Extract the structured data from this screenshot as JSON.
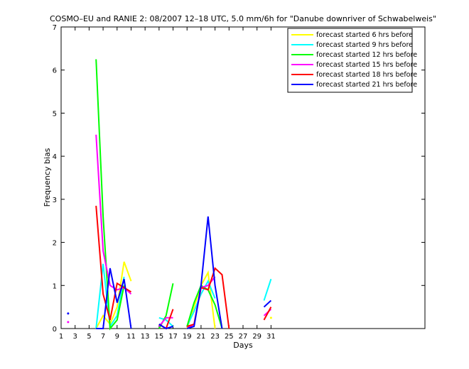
{
  "chart_data": {
    "type": "line",
    "title": "COSMO–EU and RANIE 2: 08/2007 12–18 UTC, 5.0 mm/6h for \"Danube downriver of Schwabelweis\"",
    "x_label": "Days",
    "y_label": "Frequency bias",
    "x": [
      1,
      2,
      3,
      4,
      5,
      6,
      7,
      8,
      9,
      10,
      11,
      12,
      13,
      14,
      15,
      16,
      17,
      18,
      19,
      20,
      21,
      22,
      23,
      24,
      25,
      26,
      27,
      28,
      29,
      30,
      31
    ],
    "xlim": [
      1,
      53
    ],
    "xticks": [
      1,
      3,
      5,
      7,
      9,
      11,
      13,
      15,
      17,
      19,
      21,
      23,
      25,
      27,
      29,
      31
    ],
    "ylim": [
      0,
      7
    ],
    "yticks": [
      0,
      1,
      2,
      3,
      4,
      5,
      6,
      7
    ],
    "legend": "upper-right",
    "series": [
      {
        "name": "forecast started 6 hrs before",
        "color": "#ffff00",
        "values": [
          null,
          null,
          null,
          null,
          null,
          0,
          0.3,
          0.1,
          0.5,
          1.55,
          1.1,
          null,
          null,
          null,
          null,
          null,
          null,
          null,
          0,
          0.5,
          1.0,
          1.3,
          0,
          null,
          null,
          null,
          null,
          null,
          null,
          null,
          0.25
        ]
      },
      {
        "name": "forecast started 9 hrs before",
        "color": "#00ffff",
        "values": [
          null,
          null,
          null,
          null,
          null,
          0,
          1.5,
          0.05,
          0.3,
          1.2,
          null,
          null,
          null,
          null,
          0.25,
          0.2,
          0.05,
          null,
          0.05,
          0.4,
          0.8,
          1.1,
          0.7,
          null,
          null,
          null,
          null,
          null,
          null,
          0.65,
          1.15
        ]
      },
      {
        "name": "forecast started 12 hrs before",
        "color": "#00ff00",
        "values": [
          null,
          null,
          null,
          null,
          null,
          6.25,
          2.6,
          0,
          0.2,
          1.0,
          null,
          null,
          null,
          null,
          0,
          0.3,
          1.05,
          null,
          0.05,
          0.6,
          1.0,
          0.9,
          0.55,
          0,
          null,
          null,
          null,
          null,
          null,
          null,
          null
        ]
      },
      {
        "name": "forecast started 15 hrs before",
        "color": "#ff00ff",
        "values": [
          null,
          0.15,
          null,
          null,
          null,
          4.5,
          1.8,
          1.0,
          0.9,
          0.95,
          0.8,
          null,
          null,
          null,
          0.05,
          0.25,
          0.25,
          null,
          0,
          0.1,
          0.95,
          1.0,
          1.2,
          null,
          null,
          null,
          null,
          null,
          null,
          0.3,
          0.45
        ]
      },
      {
        "name": "forecast started 18 hrs before",
        "color": "#ff0000",
        "values": [
          null,
          null,
          null,
          null,
          null,
          2.85,
          0.8,
          0.2,
          1.05,
          0.95,
          0.85,
          null,
          null,
          null,
          0.1,
          0,
          0.45,
          null,
          0.05,
          0.1,
          0.95,
          0.9,
          1.4,
          1.25,
          0,
          null,
          null,
          null,
          null,
          0.2,
          0.5
        ]
      },
      {
        "name": "forecast started 21 hrs before",
        "color": "#0000ff",
        "values": [
          null,
          0.35,
          null,
          null,
          null,
          0,
          0,
          1.4,
          0.6,
          1.15,
          0,
          null,
          null,
          null,
          0.1,
          0,
          0.05,
          null,
          0,
          0.05,
          1.0,
          2.6,
          1.0,
          0,
          null,
          null,
          null,
          null,
          null,
          0.5,
          0.65
        ]
      }
    ]
  }
}
